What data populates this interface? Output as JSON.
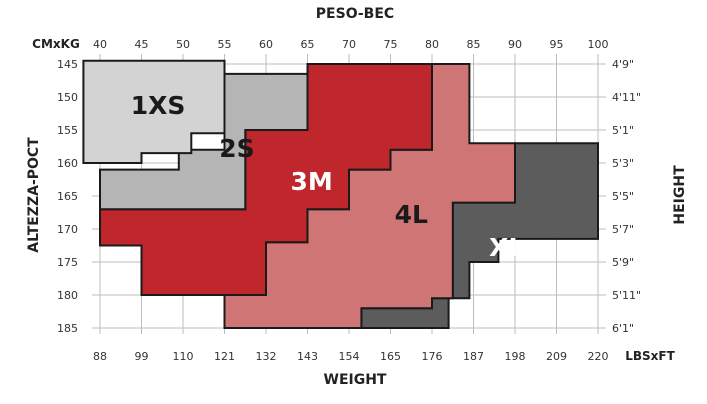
{
  "chart_data": {
    "type": "size-chart",
    "top_title": "PESO-BEC",
    "bottom_title": "WEIGHT",
    "left_title": "ALTEZZA-POCT",
    "right_title": "HEIGHT",
    "top_unit": "CMxKG",
    "bottom_unit": "LBSxFT",
    "kg_ticks": [
      40,
      45,
      50,
      55,
      60,
      65,
      70,
      75,
      80,
      85,
      90,
      95,
      100
    ],
    "lbs_ticks": [
      "88",
      "99",
      "110",
      "121",
      "132",
      "143",
      "154",
      "165",
      "176",
      "187",
      "198",
      "209",
      "220"
    ],
    "cm_ticks": [
      145,
      150,
      155,
      160,
      165,
      170,
      175,
      180,
      185
    ],
    "ft_ticks": [
      "4'9\"",
      "4'11\"",
      "5'1\"",
      "5'3\"",
      "5'5\"",
      "5'7\"",
      "5'9\"",
      "5'11\"",
      "6'1\""
    ],
    "xlim_kg": [
      40,
      100
    ],
    "ylim_cm": [
      145,
      185
    ],
    "regions": [
      {
        "name": "XL",
        "color": "#5c5c5c",
        "label_color": "#ffffff",
        "label_at": [
          89,
          173
        ],
        "polygon": [
          [
            90,
            157
          ],
          [
            100,
            157
          ],
          [
            100,
            171.5
          ],
          [
            88,
            171.5
          ],
          [
            88,
            175
          ],
          [
            84.5,
            175
          ],
          [
            84.5,
            180.5
          ],
          [
            82,
            180.5
          ],
          [
            82,
            185
          ],
          [
            71.5,
            185
          ],
          [
            71.5,
            182
          ],
          [
            80,
            182
          ],
          [
            80,
            180.5
          ],
          [
            82.5,
            180.5
          ],
          [
            82.5,
            166
          ],
          [
            90,
            166
          ]
        ]
      },
      {
        "name": "4L",
        "color": "#d07575",
        "label_color": "#1a1a1a",
        "label_at": [
          77.5,
          168
        ],
        "polygon": [
          [
            80,
            145
          ],
          [
            84.5,
            145
          ],
          [
            84.5,
            157
          ],
          [
            90,
            157
          ],
          [
            90,
            166
          ],
          [
            82.5,
            166
          ],
          [
            82.5,
            180.5
          ],
          [
            80,
            180.5
          ],
          [
            80,
            182
          ],
          [
            71.5,
            182
          ],
          [
            71.5,
            185
          ],
          [
            55,
            185
          ],
          [
            55,
            180
          ],
          [
            60,
            180
          ],
          [
            60,
            172
          ],
          [
            65,
            172
          ],
          [
            65,
            167
          ],
          [
            70,
            167
          ],
          [
            70,
            161
          ],
          [
            75,
            161
          ],
          [
            75,
            158
          ],
          [
            80,
            158
          ]
        ]
      },
      {
        "name": "3M",
        "color": "#c0272d",
        "label_color": "#ffffff",
        "label_at": [
          65.5,
          163
        ],
        "polygon": [
          [
            65,
            145
          ],
          [
            80,
            145
          ],
          [
            80,
            158
          ],
          [
            75,
            158
          ],
          [
            75,
            161
          ],
          [
            70,
            161
          ],
          [
            70,
            167
          ],
          [
            65,
            167
          ],
          [
            65,
            172
          ],
          [
            60,
            172
          ],
          [
            60,
            180
          ],
          [
            45,
            180
          ],
          [
            45,
            172.5
          ],
          [
            40,
            172.5
          ],
          [
            40,
            167
          ],
          [
            57.5,
            167
          ],
          [
            57.5,
            155
          ],
          [
            65,
            155
          ]
        ]
      },
      {
        "name": "2S",
        "color": "#b5b5b5",
        "label_color": "#1a1a1a",
        "label_at": [
          56.5,
          158
        ],
        "polygon": [
          [
            55,
            146.5
          ],
          [
            65,
            146.5
          ],
          [
            65,
            155
          ],
          [
            57.5,
            155
          ],
          [
            57.5,
            167
          ],
          [
            40,
            167
          ],
          [
            40,
            161
          ],
          [
            49.5,
            161
          ],
          [
            49.5,
            158
          ],
          [
            55,
            158
          ]
        ]
      },
      {
        "name": "1XS",
        "color": "#d3d3d3",
        "label_color": "#1a1a1a",
        "label_at": [
          47,
          151.5
        ],
        "polygon": [
          [
            38,
            144.5
          ],
          [
            55,
            144.5
          ],
          [
            55,
            155.5
          ],
          [
            51,
            155.5
          ],
          [
            51,
            158.5
          ],
          [
            45,
            158.5
          ],
          [
            45,
            160
          ],
          [
            38,
            160
          ]
        ]
      }
    ]
  }
}
